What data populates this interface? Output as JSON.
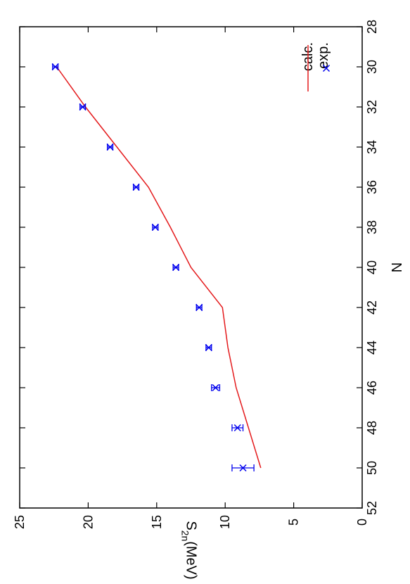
{
  "chart_data": {
    "type": "line",
    "orientation": "rotated-90-cw",
    "xlabel": "N",
    "ylabel": "S",
    "ylabel_sub": "2n",
    "ylabel_unit": "(MeV)",
    "xlim": [
      28,
      52
    ],
    "ylim": [
      0,
      25
    ],
    "x_ticks": [
      28,
      30,
      32,
      34,
      36,
      38,
      40,
      42,
      44,
      46,
      48,
      50,
      52
    ],
    "y_ticks": [
      0,
      5,
      10,
      15,
      20,
      25
    ],
    "grid": false,
    "legend_position": "top-right",
    "series": [
      {
        "name": "calc.",
        "kind": "line",
        "color": "#e41a1c",
        "points": [
          {
            "x": 30,
            "y": 22.3
          },
          {
            "x": 32,
            "y": 20.2
          },
          {
            "x": 34,
            "y": 17.9
          },
          {
            "x": 36,
            "y": 15.6
          },
          {
            "x": 38,
            "y": 14.0
          },
          {
            "x": 40,
            "y": 12.5
          },
          {
            "x": 42,
            "y": 10.2
          },
          {
            "x": 44,
            "y": 9.8
          },
          {
            "x": 46,
            "y": 9.2
          },
          {
            "x": 48,
            "y": 8.3
          },
          {
            "x": 50,
            "y": 7.4
          }
        ]
      },
      {
        "name": "exp.",
        "kind": "points",
        "marker": "cross",
        "color": "#0000ee",
        "points": [
          {
            "x": 30,
            "y": 22.4,
            "err": 0.2
          },
          {
            "x": 32,
            "y": 20.4,
            "err": 0.2
          },
          {
            "x": 34,
            "y": 18.4,
            "err": 0.2
          },
          {
            "x": 36,
            "y": 16.5,
            "err": 0.2
          },
          {
            "x": 38,
            "y": 15.1,
            "err": 0.2
          },
          {
            "x": 40,
            "y": 13.6,
            "err": 0.2
          },
          {
            "x": 42,
            "y": 11.9,
            "err": 0.2
          },
          {
            "x": 44,
            "y": 11.2,
            "err": 0.2
          },
          {
            "x": 46,
            "y": 10.7,
            "err": 0.3
          },
          {
            "x": 48,
            "y": 9.1,
            "err": 0.4
          },
          {
            "x": 50,
            "y": 8.7,
            "err": 0.8
          }
        ]
      }
    ]
  }
}
